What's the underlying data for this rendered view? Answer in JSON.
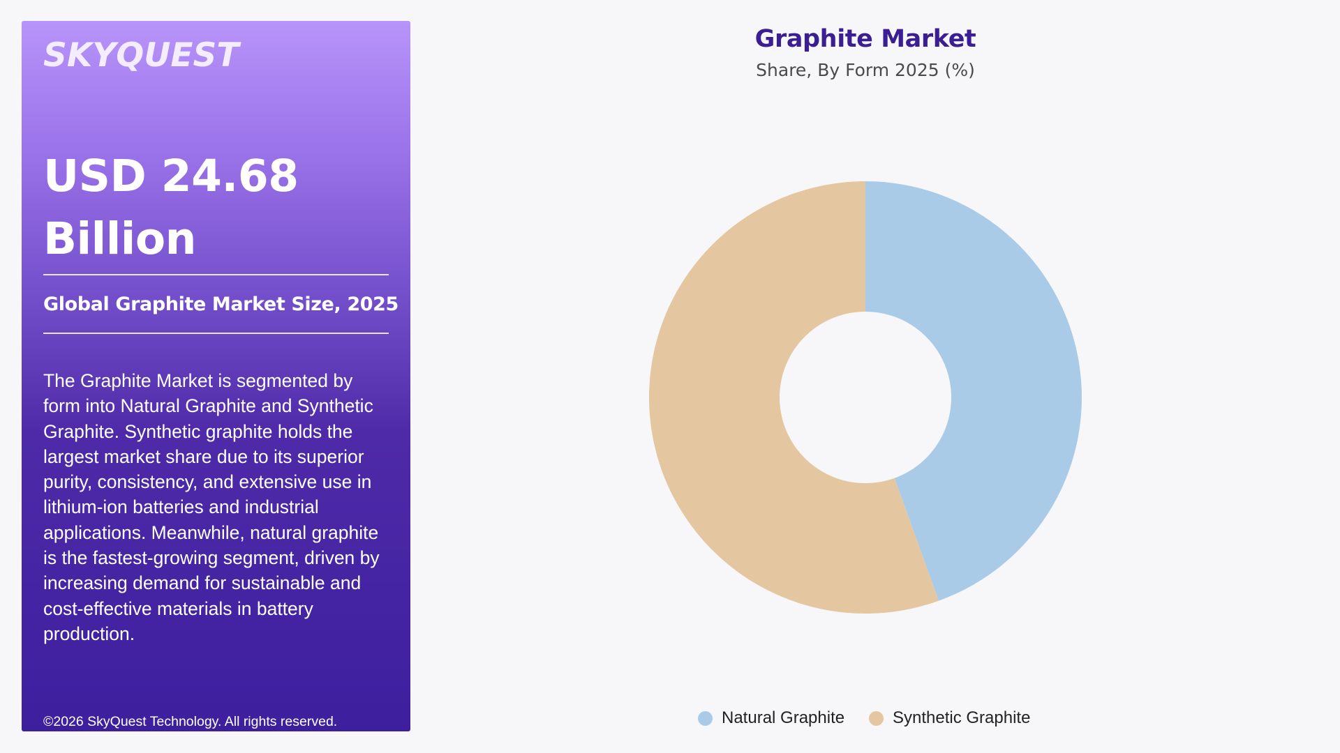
{
  "brand": {
    "logo_text": "SKYQUEST"
  },
  "summary": {
    "market_size_value": "USD 24.68 Billion",
    "market_size_label": "Global Graphite Market Size, 2025",
    "description": "The Graphite Market is segmented by form into Natural Graphite and Synthetic Graphite. Synthetic graphite holds the largest market share due to its superior purity, consistency, and extensive use in lithium-ion batteries and industrial applications. Meanwhile, natural graphite is the fastest-growing segment, driven by increasing demand for sustainable and cost-effective materials in battery production.",
    "copyright": "©2026 SkyQuest Technology. All rights reserved."
  },
  "chart_data": {
    "type": "pie",
    "title": "Graphite Market",
    "subtitle": "Share, By Form 2025 (%)",
    "legend_position": "bottom",
    "donut": true,
    "slices": [
      {
        "label": "Natural Graphite",
        "value": 44.5,
        "color": "#a9cbe8"
      },
      {
        "label": "Synthetic Graphite",
        "value": 55.5,
        "color": "#e4c7a0"
      }
    ]
  }
}
